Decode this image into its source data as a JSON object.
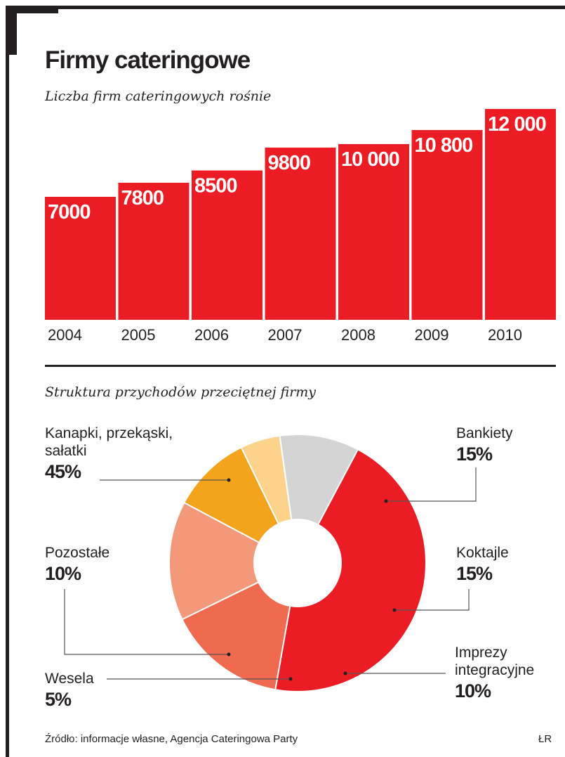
{
  "title": "Firmy cateringowe",
  "bar_subtitle": "Liczba firm cateringowych rośnie",
  "pie_subtitle": "Struktura przychodów przeciętnej firmy",
  "source": "Źródło: informacje własne, Agencja Cateringowa Party",
  "credit": "ŁR",
  "colors": {
    "bar": "#ec1c24",
    "text": "#231f20",
    "slices": [
      "#ec1c24",
      "#ef6a4e",
      "#f4987a",
      "#f4a31d",
      "#fdd28a",
      "#d4d4d4"
    ]
  },
  "chart_data": [
    {
      "type": "bar",
      "title": "Liczba firm cateringowych rośnie",
      "categories": [
        "2004",
        "2005",
        "2006",
        "2007",
        "2008",
        "2009",
        "2010"
      ],
      "values": [
        7000,
        7800,
        8500,
        9800,
        10000,
        10800,
        12000
      ],
      "value_labels": [
        "7000",
        "7800",
        "8500",
        "9800",
        "10 000",
        "10 800",
        "12 000"
      ],
      "xlabel": "",
      "ylabel": "",
      "ylim": [
        0,
        12000
      ]
    },
    {
      "type": "pie",
      "title": "Struktura przychodów przeciętnej firmy",
      "labels": [
        "Kanapki, przekąski, sałatki",
        "Bankiety",
        "Koktajle",
        "Imprezy integracyjne",
        "Wesela",
        "Pozostałe"
      ],
      "values": [
        45,
        15,
        15,
        10,
        5,
        10
      ],
      "pct_labels": [
        "45%",
        "15%",
        "15%",
        "10%",
        "5%",
        "10%"
      ],
      "donut": true
    }
  ]
}
